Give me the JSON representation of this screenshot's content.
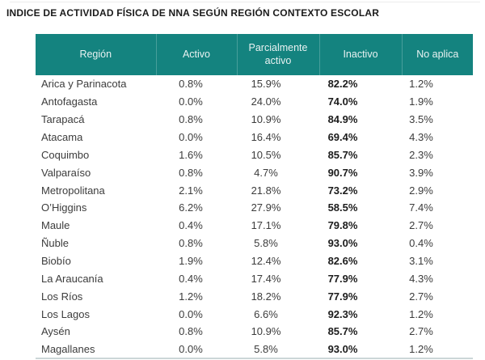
{
  "colors": {
    "header_bg": "#14837f",
    "header_text": "#e9f2f2",
    "body_text": "#3c3c3c",
    "inactivo_bold_text": "#1c1c1c",
    "table_bottom_border": "#ccd7d8"
  },
  "chart_data": {
    "type": "table",
    "title": "INDICE DE ACTIVIDAD FÍSICA DE NNA SEGÚN REGIÓN CONTEXTO ESCOLAR",
    "columns": [
      "Región",
      "Activo",
      "Parcialmente activo",
      "Inactivo",
      "No aplica"
    ],
    "emphasized_column": "Inactivo",
    "rows": [
      [
        "Arica y Parinacota",
        "0.8%",
        "15.9%",
        "82.2%",
        "1.2%"
      ],
      [
        "Antofagasta",
        "0.0%",
        "24.0%",
        "74.0%",
        "1.9%"
      ],
      [
        "Tarapacá",
        "0.8%",
        "10.9%",
        "84.9%",
        "3.5%"
      ],
      [
        "Atacama",
        "0.0%",
        "16.4%",
        "69.4%",
        "4.3%"
      ],
      [
        "Coquimbo",
        "1.6%",
        "10.5%",
        "85.7%",
        "2.3%"
      ],
      [
        "Valparaíso",
        "0.8%",
        "4.7%",
        "90.7%",
        "3.9%"
      ],
      [
        "Metropolitana",
        "2.1%",
        "21.8%",
        "73.2%",
        "2.9%"
      ],
      [
        "O’Higgins",
        "6.2%",
        "27.9%",
        "58.5%",
        "7.4%"
      ],
      [
        "Maule",
        "0.4%",
        "17.1%",
        "79.8%",
        "2.7%"
      ],
      [
        "Ñuble",
        "0.8%",
        "5.8%",
        "93.0%",
        "0.4%"
      ],
      [
        "Biobío",
        "1.9%",
        "12.4%",
        "82.6%",
        "3.1%"
      ],
      [
        "La Araucanía",
        "0.4%",
        "17.4%",
        "77.9%",
        "4.3%"
      ],
      [
        "Los Ríos",
        "1.2%",
        "18.2%",
        "77.9%",
        "2.7%"
      ],
      [
        "Los Lagos",
        "0.0%",
        "6.6%",
        "92.3%",
        "1.2%"
      ],
      [
        "Aysén",
        "0.8%",
        "10.9%",
        "85.7%",
        "2.7%"
      ],
      [
        "Magallanes",
        "0.0%",
        "5.8%",
        "93.0%",
        "1.2%"
      ]
    ]
  }
}
